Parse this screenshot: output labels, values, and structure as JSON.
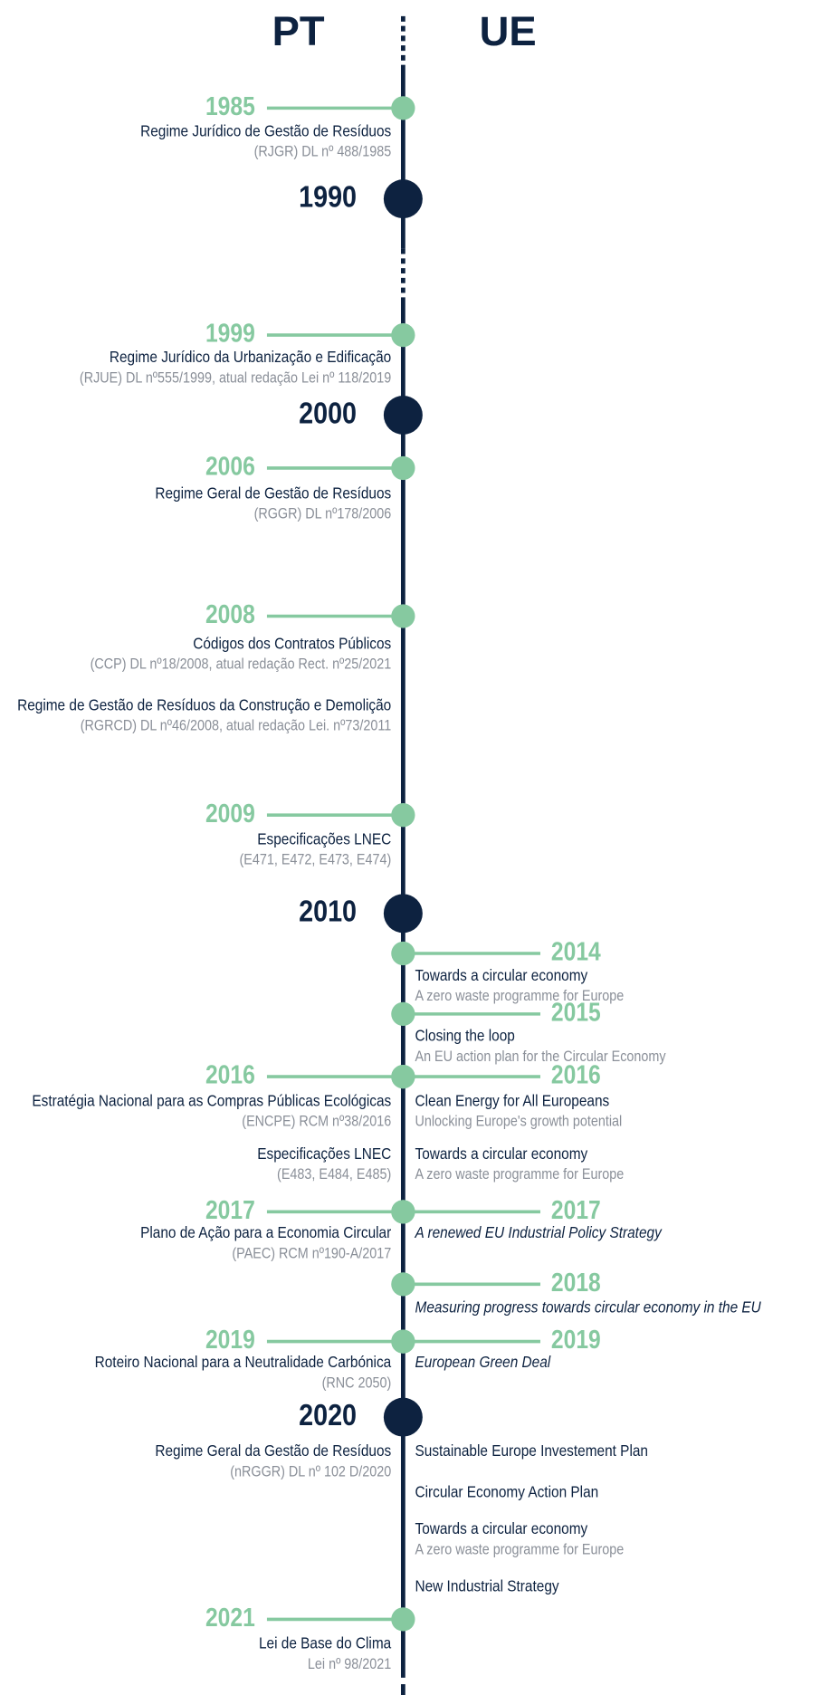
{
  "headers": {
    "left": "PT",
    "right": "UE"
  },
  "decades": [
    "1990",
    "2000",
    "2010",
    "2020"
  ],
  "pt": [
    {
      "year": "1985",
      "items": [
        {
          "title": "Regime Jurídico de Gestão de Resíduos",
          "subtitle": "(RJGR) DL nº 488/1985"
        }
      ]
    },
    {
      "year": "1999",
      "items": [
        {
          "title": "Regime Jurídico da Urbanização e Edificação",
          "subtitle": "(RJUE) DL nº555/1999, atual redação Lei nº 118/2019"
        }
      ]
    },
    {
      "year": "2006",
      "items": [
        {
          "title": "Regime Geral de Gestão de Resíduos",
          "subtitle": "(RGGR) DL nº178/2006"
        }
      ]
    },
    {
      "year": "2008",
      "items": [
        {
          "title": "Códigos dos Contratos Públicos",
          "subtitle": "(CCP) DL nº18/2008, atual redação Rect. nº25/2021"
        },
        {
          "title": "Regime de Gestão de Resíduos da Construção e Demolição",
          "subtitle": "(RGRCD) DL nº46/2008, atual redação Lei. nº73/2011"
        }
      ]
    },
    {
      "year": "2009",
      "items": [
        {
          "title": "Especificações LNEC",
          "subtitle": "(E471, E472, E473, E474)"
        }
      ]
    },
    {
      "year": "2016",
      "items": [
        {
          "title": "Estratégia Nacional para as Compras Públicas Ecológicas",
          "subtitle": "(ENCPE) RCM nº38/2016"
        },
        {
          "title": "Especificações LNEC",
          "subtitle": "(E483, E484, E485)"
        }
      ]
    },
    {
      "year": "2017",
      "items": [
        {
          "title": "Plano de Ação para a Economia Circular",
          "subtitle": "(PAEC) RCM nº190-A/2017"
        }
      ]
    },
    {
      "year": "2019",
      "items": [
        {
          "title": "Roteiro Nacional para a Neutralidade Carbónica",
          "subtitle": "(RNC 2050)"
        }
      ]
    },
    {
      "items": [
        {
          "title": "Regime Geral da Gestão de Resíduos",
          "subtitle": "(nRGGR) DL nº 102 D/2020"
        }
      ]
    },
    {
      "year": "2021",
      "items": [
        {
          "title": "Lei de Base do Clima",
          "subtitle": "Lei nº 98/2021"
        }
      ]
    }
  ],
  "ue": [
    {
      "year": "2014",
      "items": [
        {
          "title": "Towards a circular economy",
          "subtitle": "A zero waste programme for Europe"
        }
      ]
    },
    {
      "year": "2015",
      "items": [
        {
          "title": "Closing the loop",
          "subtitle": "An EU action plan for the Circular Economy"
        }
      ]
    },
    {
      "year": "2016",
      "items": [
        {
          "title": "Clean Energy for All Europeans",
          "subtitle": "Unlocking Europe's growth potential"
        },
        {
          "title": "Towards a circular economy",
          "subtitle": "A zero waste programme for Europe"
        }
      ]
    },
    {
      "year": "2017",
      "items": [
        {
          "title": "A renewed EU Industrial Policy Strategy",
          "italic": true
        }
      ]
    },
    {
      "year": "2018",
      "items": [
        {
          "title": "Measuring progress towards circular economy in the EU",
          "italic": true
        }
      ]
    },
    {
      "year": "2019",
      "items": [
        {
          "title": "European Green Deal",
          "italic": true
        }
      ]
    },
    {
      "items": [
        {
          "title": "Sustainable Europe Investement Plan"
        }
      ]
    },
    {
      "items": [
        {
          "title": "Circular Economy Action Plan"
        }
      ]
    },
    {
      "items": [
        {
          "title": "Towards a circular economy",
          "subtitle": "A zero waste programme for Europe"
        }
      ]
    },
    {
      "items": [
        {
          "title": "New Industrial Strategy"
        }
      ]
    }
  ]
}
